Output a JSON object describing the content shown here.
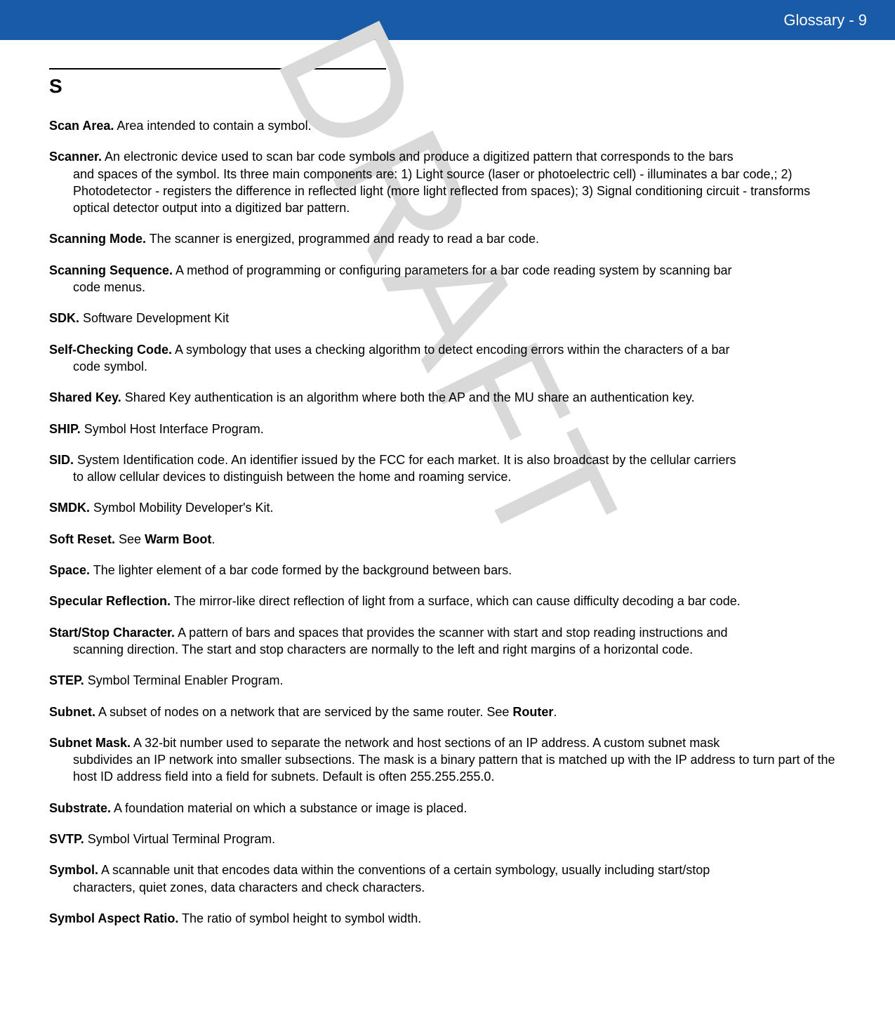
{
  "header": {
    "title": "Glossary - 9",
    "bg_color": "#1a5ba8",
    "text_color": "#ffffff"
  },
  "watermark": {
    "text": "DRAFT",
    "color": "#d9d9d9"
  },
  "section_letter": "S",
  "entries": [
    {
      "term": "Scan Area.",
      "first_line": " Area intended to contain a symbol.",
      "continuation": ""
    },
    {
      "term": "Scanner.",
      "first_line": " An electronic device used to scan bar code symbols and produce a digitized pattern that corresponds to the bars",
      "continuation": "and spaces of the symbol. Its three main components are: 1) Light source (laser or photoelectric cell) - illuminates a bar code,; 2) Photodetector - registers the difference in reflected light (more light reflected from spaces); 3) Signal conditioning circuit - transforms optical detector output into a digitized bar pattern."
    },
    {
      "term": "Scanning Mode.",
      "first_line": " The scanner is energized, programmed and ready to read a bar code.",
      "continuation": ""
    },
    {
      "term": "Scanning Sequence.",
      "first_line": " A method of programming or configuring parameters for a bar code reading system by scanning bar",
      "continuation": "code menus."
    },
    {
      "term": "SDK.",
      "first_line": " Software Development Kit",
      "continuation": ""
    },
    {
      "term": "Self-Checking Code.",
      "first_line": " A symbology that uses a checking algorithm to detect encoding errors within the characters of a bar",
      "continuation": "code symbol."
    },
    {
      "term": "Shared Key.",
      "first_line": " Shared Key authentication is an algorithm where both the AP and the MU share an authentication key.",
      "continuation": ""
    },
    {
      "term": "SHIP.",
      "first_line": " Symbol Host Interface Program.",
      "continuation": ""
    },
    {
      "term": "SID.",
      "first_line": " System Identification code. An identifier issued by the FCC for each market. It is also broadcast by the cellular carriers",
      "continuation": "to allow cellular devices to distinguish between the home and roaming service."
    },
    {
      "term": "SMDK.",
      "first_line": " Symbol Mobility Developer's Kit.",
      "continuation": ""
    },
    {
      "term": "Soft Reset.",
      "first_line_pre": " See ",
      "bold_ref": "Warm Boot",
      "first_line_post": ".",
      "continuation": ""
    },
    {
      "term": "Space.",
      "first_line": " The lighter element of a bar code formed by the background between bars.",
      "continuation": ""
    },
    {
      "term": "Specular Reflection.",
      "first_line": " The mirror-like direct reflection of light from a surface, which can cause difficulty decoding a bar code.",
      "continuation": ""
    },
    {
      "term": "Start/Stop Character.",
      "first_line": " A pattern of bars and spaces that provides the scanner with start and stop reading instructions and",
      "continuation": "scanning direction. The start and stop characters are normally to the left and right margins of a horizontal code."
    },
    {
      "term": "STEP.",
      "first_line": " Symbol Terminal Enabler Program.",
      "continuation": ""
    },
    {
      "term": "Subnet.",
      "first_line_pre": " A subset of nodes on a network that are serviced by the same router. See ",
      "bold_ref": "Router",
      "first_line_post": ".",
      "continuation": ""
    },
    {
      "term": "Subnet Mask.",
      "first_line": " A 32-bit number used to separate the network and host sections of an IP address. A custom subnet mask",
      "continuation": "subdivides an IP network into smaller subsections. The mask is a binary pattern that is matched up with the IP address to turn part of the host ID address field into a field for subnets. Default is often 255.255.255.0."
    },
    {
      "term": "Substrate.",
      "first_line": " A foundation material on which a substance or image is placed.",
      "continuation": ""
    },
    {
      "term": "SVTP.",
      "first_line": " Symbol Virtual Terminal Program.",
      "continuation": ""
    },
    {
      "term": "Symbol.",
      "first_line": " A scannable unit that encodes data within the conventions of a certain symbology, usually including start/stop",
      "continuation": "characters, quiet zones, data characters and check characters."
    },
    {
      "term": "Symbol Aspect Ratio.",
      "first_line": " The ratio of symbol height to symbol width.",
      "continuation": ""
    }
  ]
}
